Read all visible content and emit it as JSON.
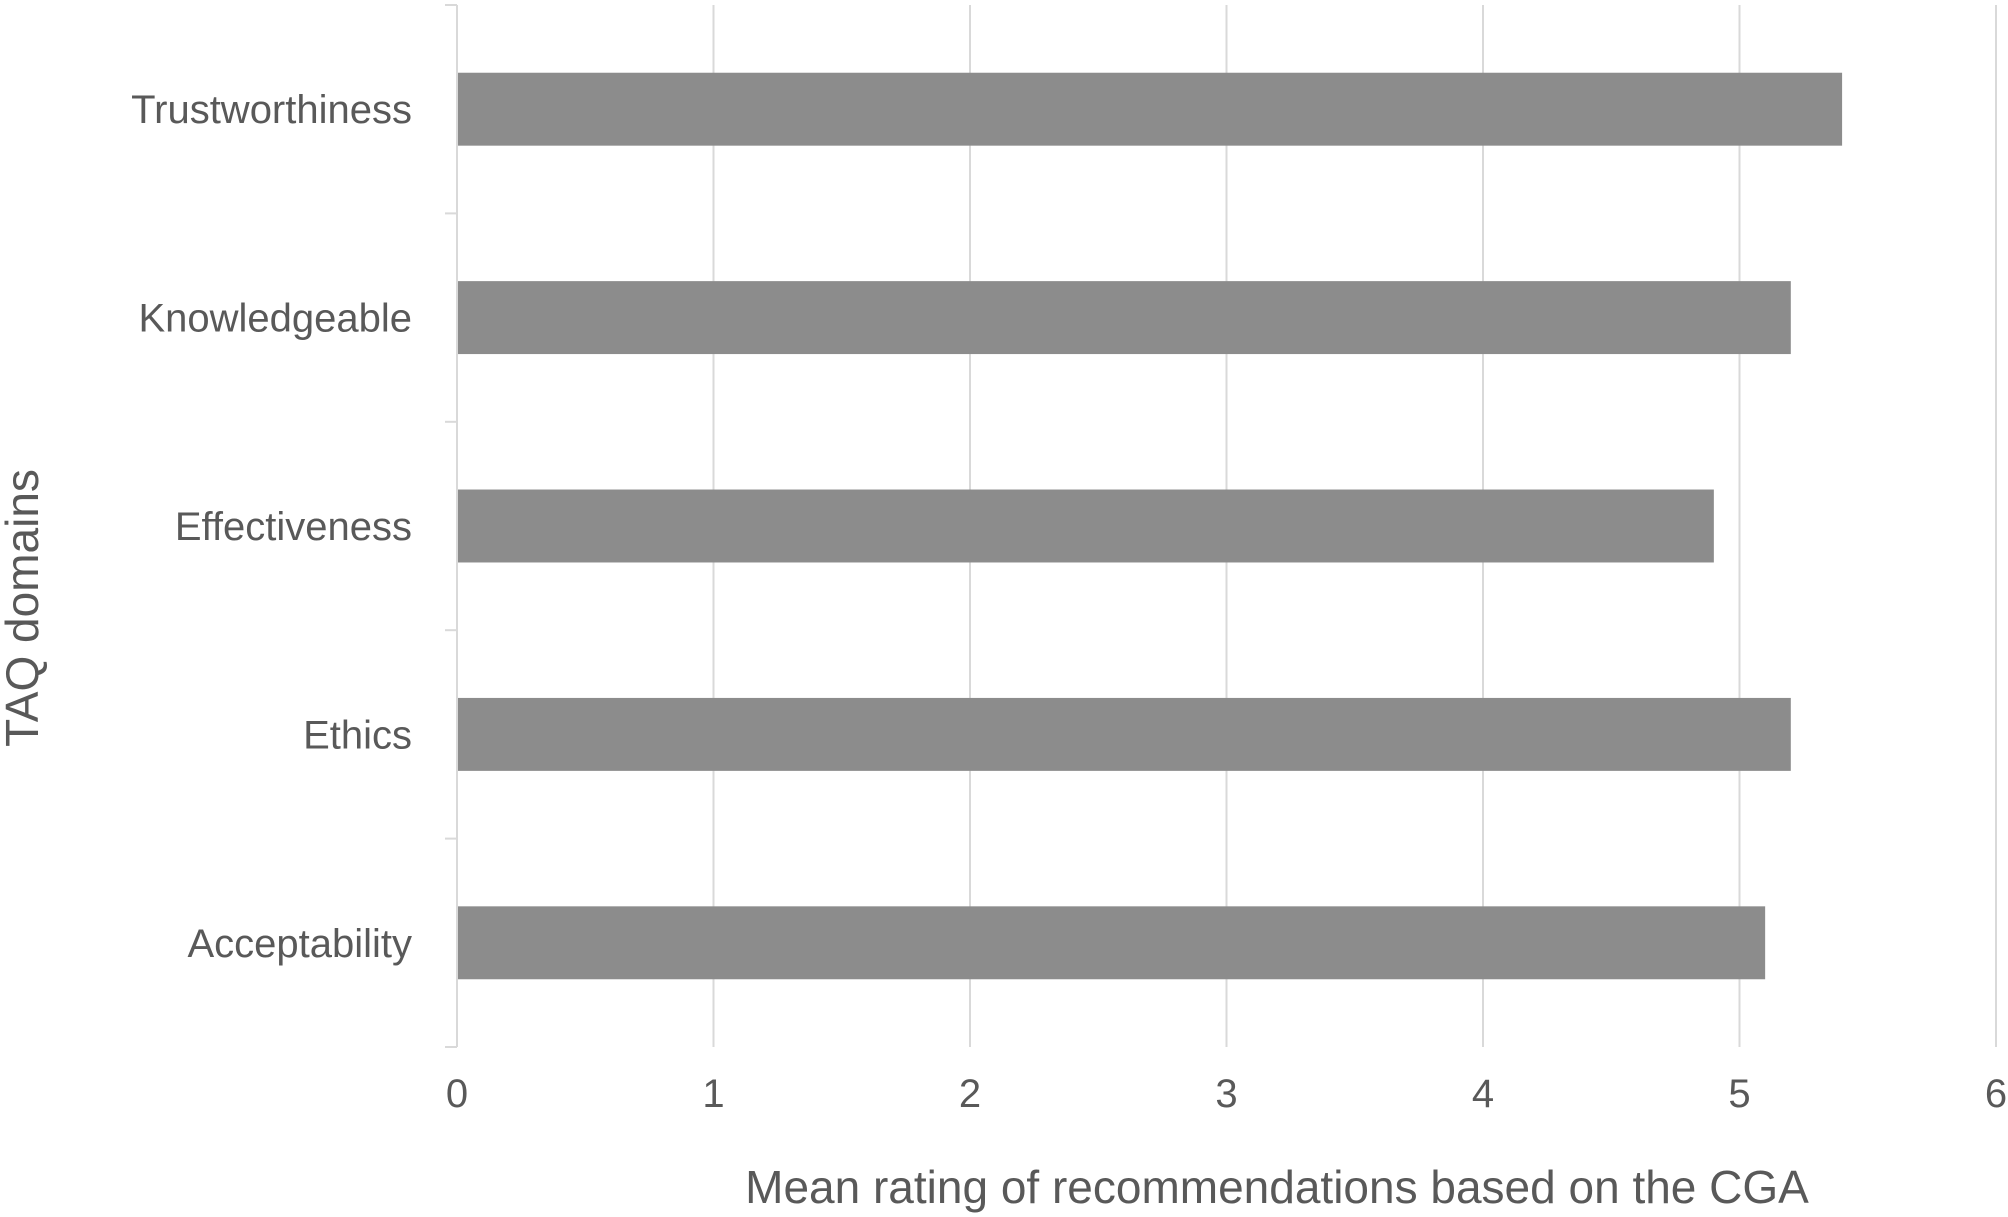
{
  "chart_data": {
    "type": "bar",
    "orientation": "horizontal",
    "categories": [
      "Trustworthiness",
      "Knowledgeable",
      "Effectiveness",
      "Ethics",
      "Acceptability"
    ],
    "values": [
      5.4,
      5.2,
      4.9,
      5.2,
      5.1
    ],
    "xlabel": "Mean rating of recommendations based on the CGA",
    "ylabel": "TAQ domains",
    "xlim": [
      0,
      6
    ],
    "xticks": [
      "0",
      "1",
      "2",
      "3",
      "4",
      "5",
      "6"
    ],
    "grid": "vertical",
    "bar_color": "#8c8c8c",
    "grid_color": "#d9d9d9",
    "text_color": "#595959"
  }
}
